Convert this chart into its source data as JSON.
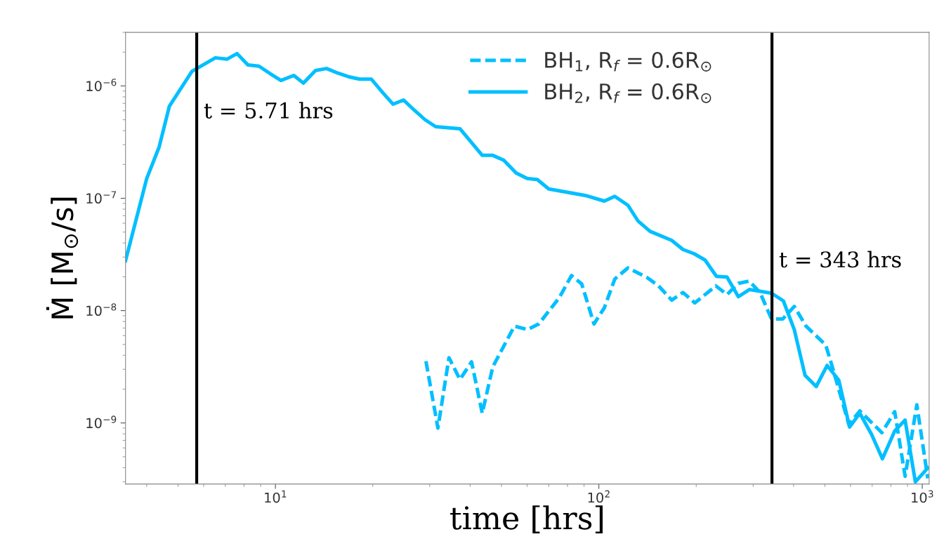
{
  "chart_data": {
    "type": "line",
    "xlabel": "time [hrs]",
    "ylabel": "Ṁ [M$_{⊙}$/s]",
    "log": "xy",
    "grid": false,
    "legend": "top",
    "xlim": [
      3.44,
      1050
    ],
    "ylim": [
      2.86e-10,
      3e-06
    ],
    "xticks": [
      {
        "value": 10,
        "label": "10$^{1}$"
      },
      {
        "value": 100,
        "label": "10$^{2}$"
      },
      {
        "value": 1000,
        "label": "10$^{3}$"
      }
    ],
    "yticks": [
      {
        "value": 1e-09,
        "label": "10$^{−9}$"
      },
      {
        "value": 1e-08,
        "label": "10$^{−8}$"
      },
      {
        "value": 1e-07,
        "label": "10$^{−7}$"
      },
      {
        "value": 1e-06,
        "label": "10$^{−6}$"
      }
    ],
    "ref_lines": [
      {
        "axis": "x",
        "value": 5.71,
        "label": "t = 5.71 hrs",
        "color": "#000000",
        "line_style": "solid"
      },
      {
        "axis": "x",
        "value": 343,
        "label": "t = 343 hrs",
        "color": "#000000",
        "line_style": "solid"
      }
    ],
    "series": [
      {
        "name": "BH$_{1}$, R$_{f}$ = 0.6R$_{⊙}$",
        "color": "#00bfff",
        "line_style": "dashed",
        "x": [
          29.2,
          31.8,
          34.4,
          37.2,
          40.4,
          43.6,
          47.0,
          54.8,
          60.2,
          65.2,
          75.4,
          82.3,
          88.5,
          96.6,
          104,
          112,
          123,
          141,
          153,
          168,
          182,
          198,
          230,
          249,
          270,
          292,
          315,
          342,
          370,
          402,
          437,
          503,
          527,
          593,
          641,
          750,
          822,
          885,
          962,
          1040
        ],
        "values": [
          3.55e-09,
          9e-10,
          3.81e-09,
          2.44e-09,
          3.5e-09,
          1.22e-09,
          3.16e-09,
          7.28e-09,
          6.78e-09,
          7.61e-09,
          1.3e-08,
          2.05e-08,
          1.73e-08,
          7.61e-09,
          1.06e-08,
          1.91e-08,
          2.4e-08,
          1.97e-08,
          1.66e-08,
          1.24e-08,
          1.45e-08,
          1.17e-08,
          1.66e-08,
          1.39e-08,
          1.75e-08,
          1.83e-08,
          1.45e-08,
          8.41e-09,
          8.41e-09,
          1.09e-08,
          7.28e-09,
          4.94e-09,
          3.16e-09,
          9.7e-10,
          1.28e-09,
          8.2e-10,
          1.26e-09,
          3.35e-10,
          1.45e-09,
          3.21e-10
        ]
      },
      {
        "name": "BH$_{2}$, R$_{f}$ = 0.6R$_{⊙}$",
        "color": "#00bfff",
        "line_style": "solid",
        "x": [
          3.44,
          4.0,
          4.37,
          4.7,
          5.52,
          6.52,
          7.08,
          7.61,
          8.22,
          8.89,
          9.66,
          10.4,
          11.4,
          12.2,
          13.3,
          14.4,
          15.6,
          16.8,
          18.2,
          19.8,
          21.5,
          23.1,
          24.9,
          26.8,
          29.0,
          31.3,
          37.2,
          43.6,
          47.0,
          50.8,
          55.5,
          60.0,
          64.5,
          70.0,
          90.7,
          104,
          112,
          123,
          132,
          144,
          168,
          182,
          197,
          213,
          231,
          249,
          270,
          292,
          342,
          372,
          402,
          434,
          470,
          508,
          552,
          596,
          641,
          697,
          753,
          822,
          885,
          952,
          1040
        ],
        "values": [
          2.78e-08,
          1.5e-07,
          2.86e-07,
          6.59e-07,
          1.35e-06,
          1.78e-06,
          1.73e-06,
          1.94e-06,
          1.54e-06,
          1.5e-06,
          1.28e-06,
          1.12e-06,
          1.24e-06,
          1.06e-06,
          1.37e-06,
          1.43e-06,
          1.3e-06,
          1.21e-06,
          1.15e-06,
          1.15e-06,
          8.66e-07,
          6.88e-07,
          7.5e-07,
          6.13e-07,
          5.01e-07,
          4.34e-07,
          4.16e-07,
          2.41e-07,
          2.41e-07,
          2.18e-07,
          1.68e-07,
          1.5e-07,
          1.47e-07,
          1.21e-07,
          1.06e-07,
          9.44e-08,
          1.04e-07,
          8.66e-08,
          6.31e-08,
          5.08e-08,
          4.22e-08,
          3.5e-08,
          3.21e-08,
          2.82e-08,
          2.02e-08,
          1.99e-08,
          1.33e-08,
          1.54e-08,
          1.43e-08,
          1.22e-08,
          6.78e-09,
          2.66e-09,
          2.11e-09,
          3.25e-09,
          2.4e-09,
          9.2e-10,
          1.22e-09,
          7.9e-10,
          4.8e-10,
          8.5e-10,
          1.06e-09,
          2.99e-10,
          3.98e-10
        ]
      }
    ]
  }
}
